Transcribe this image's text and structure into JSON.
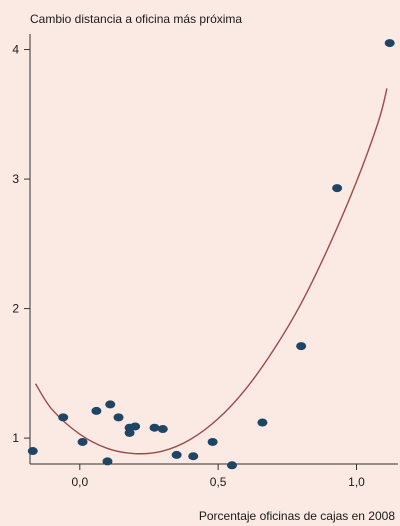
{
  "chart_data": {
    "type": "scatter",
    "title": "Cambio distancia a oficina más próxima",
    "xlabel": "Porcentaje oficinas de cajas en 2008",
    "ylabel": "",
    "xlim": [
      -0.18,
      1.15
    ],
    "ylim": [
      0.8,
      4.12
    ],
    "x_ticks": [
      0.0,
      0.5,
      1.0
    ],
    "x_tick_labels": [
      "0,0",
      "0,5",
      "1,0"
    ],
    "y_ticks": [
      1,
      2,
      3,
      4
    ],
    "y_tick_labels": [
      "1",
      "2",
      "3",
      "4"
    ],
    "grid": false,
    "series": [
      {
        "type": "scatter",
        "color": "#1f4565",
        "points": [
          {
            "x": -0.17,
            "y": 0.9
          },
          {
            "x": -0.06,
            "y": 1.16
          },
          {
            "x": 0.01,
            "y": 0.97
          },
          {
            "x": 0.06,
            "y": 1.21
          },
          {
            "x": 0.1,
            "y": 0.82
          },
          {
            "x": 0.11,
            "y": 1.26
          },
          {
            "x": 0.14,
            "y": 1.16
          },
          {
            "x": 0.18,
            "y": 1.04
          },
          {
            "x": 0.18,
            "y": 1.08
          },
          {
            "x": 0.2,
            "y": 1.09
          },
          {
            "x": 0.27,
            "y": 1.08
          },
          {
            "x": 0.3,
            "y": 1.07
          },
          {
            "x": 0.35,
            "y": 0.87
          },
          {
            "x": 0.41,
            "y": 0.86
          },
          {
            "x": 0.48,
            "y": 0.97
          },
          {
            "x": 0.55,
            "y": 0.79
          },
          {
            "x": 0.66,
            "y": 1.12
          },
          {
            "x": 0.8,
            "y": 1.71
          },
          {
            "x": 0.93,
            "y": 2.93
          },
          {
            "x": 1.12,
            "y": 4.05
          }
        ]
      },
      {
        "type": "line",
        "color": "#9c4a4c",
        "curve": [
          {
            "x": -0.16,
            "y": 1.42
          },
          {
            "x": -0.1,
            "y": 1.22
          },
          {
            "x": 0.0,
            "y": 1.03
          },
          {
            "x": 0.1,
            "y": 0.92
          },
          {
            "x": 0.2,
            "y": 0.88
          },
          {
            "x": 0.3,
            "y": 0.9
          },
          {
            "x": 0.4,
            "y": 0.99
          },
          {
            "x": 0.5,
            "y": 1.15
          },
          {
            "x": 0.6,
            "y": 1.38
          },
          {
            "x": 0.7,
            "y": 1.68
          },
          {
            "x": 0.8,
            "y": 2.04
          },
          {
            "x": 0.9,
            "y": 2.48
          },
          {
            "x": 1.0,
            "y": 2.98
          },
          {
            "x": 1.08,
            "y": 3.45
          },
          {
            "x": 1.11,
            "y": 3.7
          }
        ]
      }
    ]
  }
}
